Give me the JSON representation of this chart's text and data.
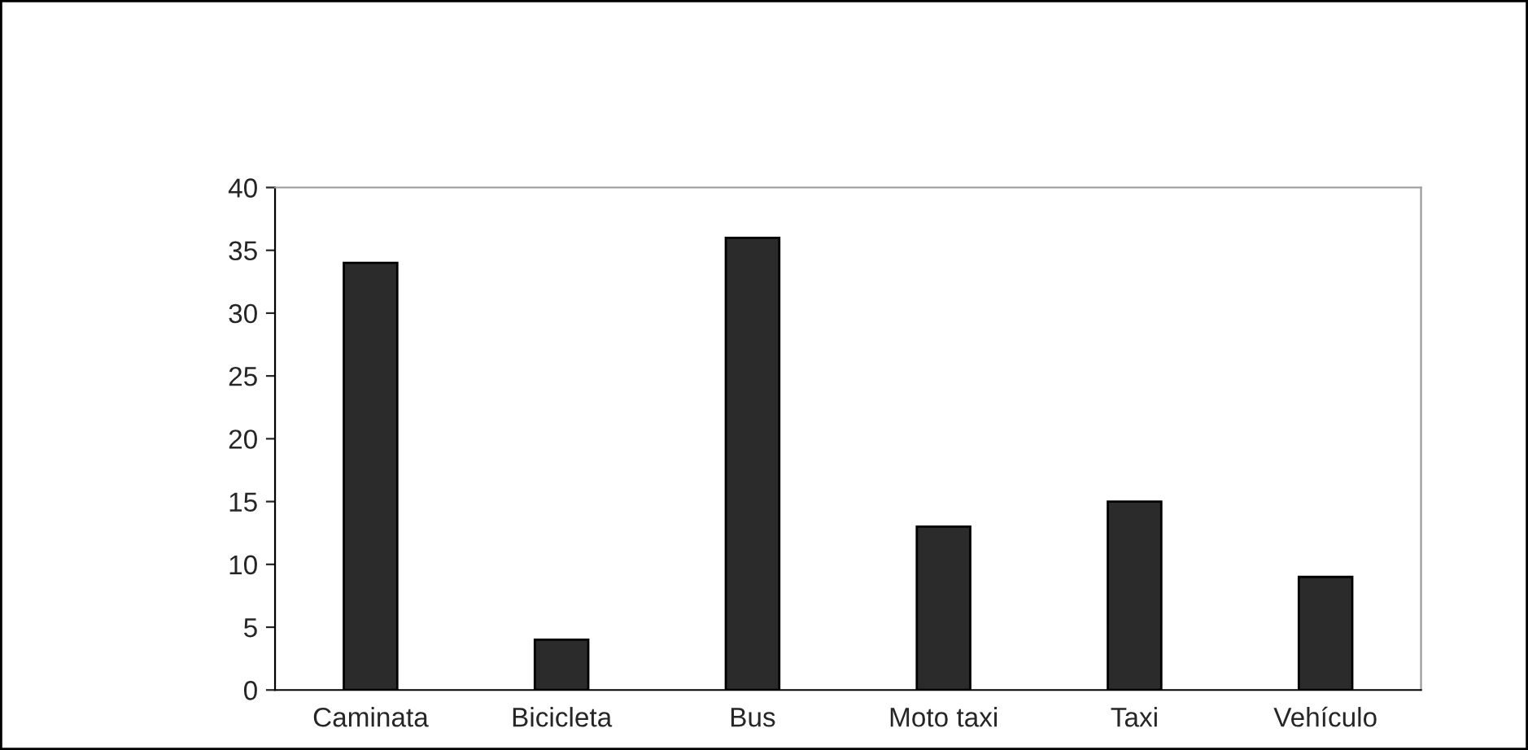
{
  "chart_data": {
    "type": "bar",
    "categories": [
      "Caminata",
      "Bicicleta",
      "Bus",
      "Moto taxi",
      "Taxi",
      "Vehículo"
    ],
    "values": [
      34,
      4,
      36,
      13,
      15,
      9
    ],
    "color": "#2b2b2b",
    "ylim": [
      0,
      40
    ],
    "yticks": [
      0,
      5,
      10,
      15,
      20,
      25,
      30,
      35,
      40
    ],
    "grid": false,
    "legend": false
  }
}
